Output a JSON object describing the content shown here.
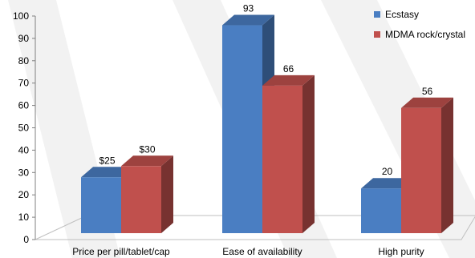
{
  "chart_data": {
    "type": "bar",
    "categories": [
      "Price per pill/tablet/cap",
      "Ease of availability",
      "High purity"
    ],
    "series": [
      {
        "name": "Ecstasy",
        "values": [
          25,
          93,
          20
        ],
        "labels": [
          "$25",
          "93",
          "20"
        ],
        "color": "#4A7EC2"
      },
      {
        "name": "MDMA rock/crystal",
        "values": [
          30,
          66,
          56
        ],
        "labels": [
          "$30",
          "66",
          "56"
        ],
        "color": "#C0504D"
      }
    ],
    "yticks": [
      "0",
      "10",
      "20",
      "30",
      "40",
      "50",
      "60",
      "70",
      "80",
      "90",
      "100"
    ],
    "ylim": [
      0,
      100
    ],
    "title": "",
    "xlabel": "",
    "ylabel": "",
    "legend": "top-right",
    "grid": false,
    "style": "3d-clustered-column"
  }
}
